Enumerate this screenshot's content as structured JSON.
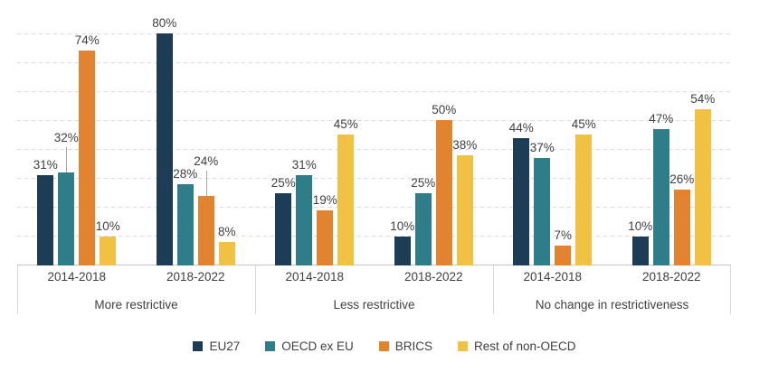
{
  "chart_data": {
    "type": "bar",
    "title": "",
    "xlabel": "",
    "ylabel": "",
    "ylim": [
      0,
      90
    ],
    "unit": "%",
    "grid": true,
    "gridline_style": "dashed",
    "gridlines_pct": [
      10,
      20,
      30,
      40,
      50,
      60,
      70,
      80
    ],
    "legend_position": "bottom",
    "series": [
      {
        "name": "EU27",
        "color": "#1d3c55"
      },
      {
        "name": "OECD ex EU",
        "color": "#2e7d89"
      },
      {
        "name": "BRICS",
        "color": "#e2832f"
      },
      {
        "name": "Rest of non-OECD",
        "color": "#f0c143"
      }
    ],
    "groups": [
      {
        "label": "More restrictive",
        "clusters": [
          {
            "period": "2014-2018",
            "values": [
              31,
              32,
              74,
              10
            ],
            "callout_series": [
              1
            ]
          },
          {
            "period": "2018-2022",
            "values": [
              80,
              28,
              24,
              8
            ],
            "callout_series": [
              2
            ]
          }
        ]
      },
      {
        "label": "Less restrictive",
        "clusters": [
          {
            "period": "2014-2018",
            "values": [
              25,
              31,
              19,
              45
            ],
            "callout_series": []
          },
          {
            "period": "2018-2022",
            "values": [
              10,
              25,
              50,
              38
            ],
            "callout_series": []
          }
        ]
      },
      {
        "label": "No change in restrictiveness",
        "clusters": [
          {
            "period": "2014-2018",
            "values": [
              44,
              37,
              7,
              45
            ],
            "callout_series": []
          },
          {
            "period": "2018-2022",
            "values": [
              10,
              47,
              26,
              54
            ],
            "callout_series": []
          }
        ]
      }
    ]
  },
  "colors": {
    "text": "#404040",
    "gridline": "#d9d9d9",
    "axis_line": "#c6c6c6",
    "callout_line": "#a6a6a6",
    "background": "#ffffff"
  }
}
